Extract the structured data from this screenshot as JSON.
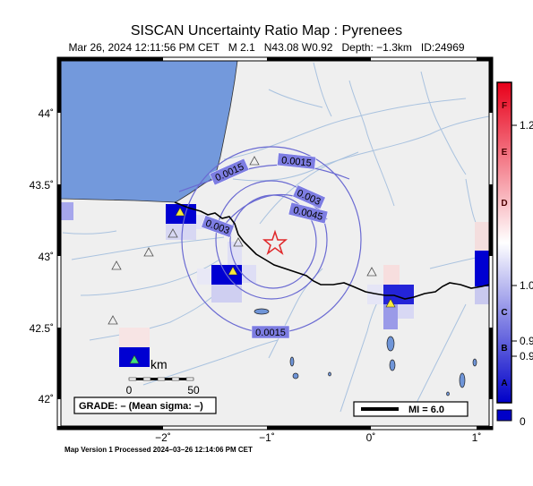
{
  "title": "SISCAN Uncertainty Ratio Map : Pyrenees",
  "subtitle": "Mar 26, 2024 12:11:56 PM CET   M 2.1   N43.08 W0.92   Depth: −1.3km   ID:24969",
  "footer": "Map Version 1 Processed 2024–03–26 12:14:06 PM CET",
  "map": {
    "lon_labels": [
      "−2˚",
      "−1˚",
      "0˚",
      "1˚"
    ],
    "lat_labels": [
      "44˚",
      "43.5˚",
      "43˚",
      "42.5˚",
      "42˚"
    ],
    "contours": [
      {
        "value": "0.0015",
        "label": "0.0015"
      },
      {
        "value": "0.003",
        "label": "0.003"
      },
      {
        "value": "0.0045",
        "label": "0.0045"
      }
    ],
    "contour_labels": [
      "0.0015",
      "0.0015",
      "0.0015",
      "0.003",
      "0.003",
      "0.0045"
    ],
    "epicenter_icon": "star-icon",
    "station_icon": "triangle-icon",
    "scale_label": "km",
    "scale_ticks": [
      "0",
      "50"
    ],
    "grade_label": "GRADE: – (Mean sigma: –)",
    "mi_label": "MI = 6.0",
    "colors": {
      "sea": "#7399dc",
      "land": "#efefef",
      "river": "#a9c2df",
      "contour": "#6a6ad2",
      "star": "#e0282a",
      "cell": "#0000d2"
    }
  },
  "colorbar": {
    "left_labels": [
      "F",
      "E",
      "D",
      "C",
      "B",
      "A"
    ],
    "right_labels": [
      "1.2",
      "1.0",
      "0.9",
      "0.9",
      "0"
    ],
    "colors": {
      "top": "#e8001a",
      "mid": "#ffffff",
      "bottom": "#0000c8"
    }
  }
}
